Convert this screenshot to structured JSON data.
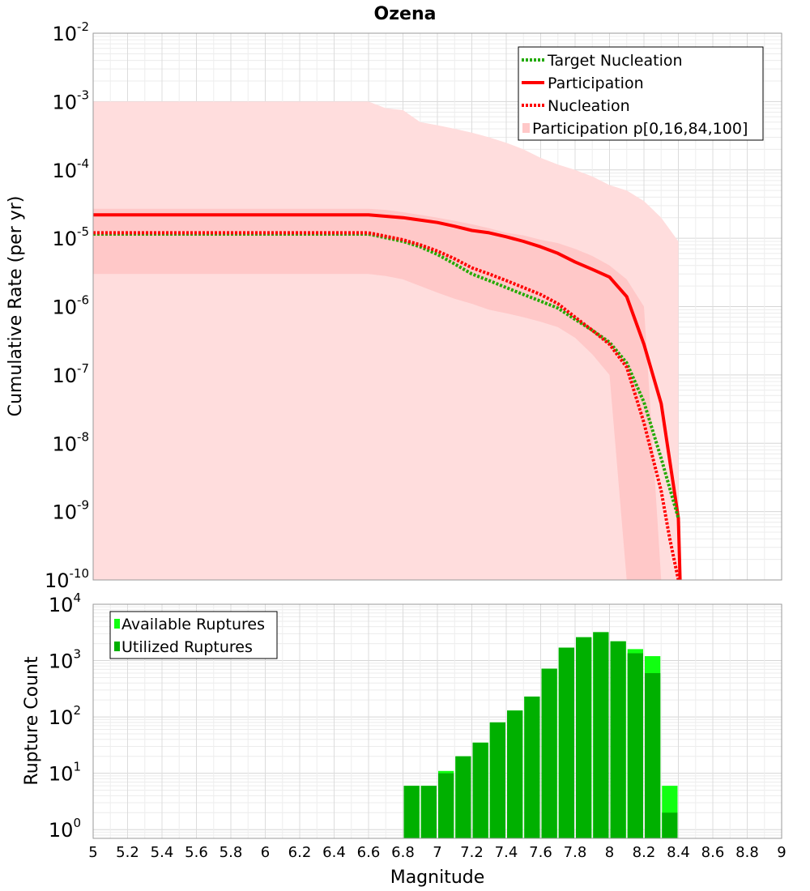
{
  "chart_data": [
    {
      "type": "line",
      "title": "Ozena",
      "ylabel": "Cumulative Rate (per yr)",
      "yscale": "log",
      "xlim": [
        5,
        9
      ],
      "ylim": [
        1e-10,
        0.01
      ],
      "y_ticks": [
        {
          "base": "10",
          "exp": "-10"
        },
        {
          "base": "10",
          "exp": "-9"
        },
        {
          "base": "10",
          "exp": "-8"
        },
        {
          "base": "10",
          "exp": "-7"
        },
        {
          "base": "10",
          "exp": "-6"
        },
        {
          "base": "10",
          "exp": "-5"
        },
        {
          "base": "10",
          "exp": "-4"
        },
        {
          "base": "10",
          "exp": "-3"
        },
        {
          "base": "10",
          "exp": "-2"
        }
      ],
      "grid": true,
      "legend_position": "top-right",
      "legend": [
        {
          "label": "Target Nucleation",
          "style": "dotted",
          "color": "#22aa00"
        },
        {
          "label": "Participation",
          "style": "solid",
          "color": "#ff0000"
        },
        {
          "label": "Nucleation",
          "style": "dotted",
          "color": "#ff0000"
        },
        {
          "label": "Participation p[0,16,84,100]",
          "style": "band",
          "color": "#ffc8c8"
        }
      ],
      "bands": {
        "x": [
          5.0,
          6.6,
          6.7,
          6.8,
          6.9,
          7.0,
          7.1,
          7.2,
          7.3,
          7.4,
          7.5,
          7.6,
          7.7,
          7.8,
          7.9,
          8.0,
          8.1,
          8.2,
          8.3,
          8.4
        ],
        "p0": [
          1e-10,
          1e-10,
          1e-10,
          1e-10,
          1e-10,
          1e-10,
          1e-10,
          1e-10,
          1e-10,
          1e-10,
          1e-10,
          1e-10,
          1e-10,
          1e-10,
          1e-10,
          1e-10,
          1e-10,
          1e-10,
          1e-10,
          1e-10
        ],
        "p16": [
          3e-06,
          3e-06,
          2.8e-06,
          2.5e-06,
          2e-06,
          1.6e-06,
          1.3e-06,
          1.1e-06,
          9e-07,
          8e-07,
          7e-07,
          6e-07,
          5e-07,
          3.5e-07,
          2e-07,
          1e-07,
          1e-10,
          1e-10,
          1e-10,
          1e-10
        ],
        "p84": [
          2.7e-05,
          2.7e-05,
          2.6e-05,
          2.4e-05,
          2.2e-05,
          2e-05,
          1.8e-05,
          1.6e-05,
          1.4e-05,
          1.2e-05,
          1.1e-05,
          9.5e-06,
          8.5e-06,
          7e-06,
          5.5e-06,
          4e-06,
          2.5e-06,
          1e-06,
          1e-10,
          1e-10
        ],
        "p100": [
          0.001,
          0.001,
          0.0008,
          0.00075,
          0.0005,
          0.00045,
          0.0004,
          0.00035,
          0.0003,
          0.00025,
          0.0002,
          0.00015,
          0.00012,
          0.0001,
          8e-05,
          6e-05,
          5e-05,
          3.5e-05,
          2e-05,
          9e-06
        ]
      },
      "series": [
        {
          "name": "Participation",
          "style": "solid",
          "color": "#ff0000",
          "x": [
            5.0,
            6.6,
            6.8,
            7.0,
            7.1,
            7.2,
            7.3,
            7.4,
            7.5,
            7.6,
            7.7,
            7.8,
            7.9,
            8.0,
            8.1,
            8.2,
            8.3,
            8.4,
            8.41
          ],
          "y": [
            2.2e-05,
            2.2e-05,
            2e-05,
            1.7e-05,
            1.5e-05,
            1.3e-05,
            1.2e-05,
            1.05e-05,
            9e-06,
            7.5e-06,
            6e-06,
            4.5e-06,
            3.5e-06,
            2.7e-06,
            1.4e-06,
            2.8e-07,
            3.8e-08,
            8e-10,
            1e-10
          ]
        },
        {
          "name": "Nucleation",
          "style": "dotted",
          "color": "#ff0000",
          "x": [
            5.0,
            6.6,
            6.8,
            6.9,
            7.0,
            7.1,
            7.2,
            7.3,
            7.4,
            7.5,
            7.6,
            7.7,
            7.8,
            7.9,
            8.0,
            8.1,
            8.2,
            8.3,
            8.35,
            8.4
          ],
          "y": [
            1.2e-05,
            1.2e-05,
            9.5e-06,
            8e-06,
            6.5e-06,
            5e-06,
            3.7e-06,
            3e-06,
            2.4e-06,
            1.9e-06,
            1.5e-06,
            1.1e-06,
            7e-07,
            4.5e-07,
            2.8e-07,
            1.3e-07,
            2e-08,
            2e-09,
            4e-10,
            1e-10
          ]
        },
        {
          "name": "Target Nucleation",
          "style": "dotted",
          "color": "#22aa00",
          "x": [
            5.0,
            6.6,
            6.8,
            6.9,
            7.0,
            7.1,
            7.2,
            7.3,
            7.4,
            7.5,
            7.6,
            7.7,
            7.8,
            7.9,
            8.0,
            8.1,
            8.2,
            8.3,
            8.4
          ],
          "y": [
            1.15e-05,
            1.15e-05,
            9e-06,
            7.5e-06,
            5.8e-06,
            4.2e-06,
            3e-06,
            2.4e-06,
            1.9e-06,
            1.5e-06,
            1.2e-06,
            9.5e-07,
            6.5e-07,
            4.5e-07,
            3e-07,
            1.5e-07,
            4e-08,
            6e-09,
            8e-10
          ]
        }
      ]
    },
    {
      "type": "bar",
      "ylabel": "Rupture Count",
      "xlabel": "Magnitude",
      "yscale": "log",
      "xlim": [
        5,
        9
      ],
      "ylim": [
        0.7,
        10000
      ],
      "x_ticks": [
        "5",
        "5.2",
        "5.4",
        "5.6",
        "5.8",
        "6",
        "6.2",
        "6.4",
        "6.6",
        "6.8",
        "7",
        "7.2",
        "7.4",
        "7.6",
        "7.8",
        "8",
        "8.2",
        "8.4",
        "8.6",
        "8.8",
        "9"
      ],
      "y_ticks": [
        {
          "base": "10",
          "exp": "0"
        },
        {
          "base": "10",
          "exp": "1"
        },
        {
          "base": "10",
          "exp": "2"
        },
        {
          "base": "10",
          "exp": "3"
        },
        {
          "base": "10",
          "exp": "4"
        }
      ],
      "grid": true,
      "legend_position": "top-left",
      "legend": [
        {
          "label": "Available Ruptures",
          "color": "#11ff11"
        },
        {
          "label": "Utilized Ruptures",
          "color": "#00b000"
        }
      ],
      "bin_width": 0.1,
      "categories": [
        6.85,
        6.95,
        7.05,
        7.15,
        7.25,
        7.35,
        7.45,
        7.55,
        7.65,
        7.75,
        7.85,
        7.95,
        8.05,
        8.15,
        8.25,
        8.35
      ],
      "series": [
        {
          "name": "Available Ruptures",
          "color": "#11ff11",
          "values": [
            6,
            6,
            11,
            20,
            35,
            80,
            130,
            230,
            720,
            1700,
            2600,
            3200,
            2200,
            1600,
            1200,
            6
          ]
        },
        {
          "name": "Utilized Ruptures",
          "color": "#00b000",
          "values": [
            6,
            6,
            10,
            20,
            35,
            80,
            130,
            230,
            720,
            1700,
            2600,
            3200,
            2200,
            1350,
            600,
            2
          ]
        }
      ]
    }
  ]
}
